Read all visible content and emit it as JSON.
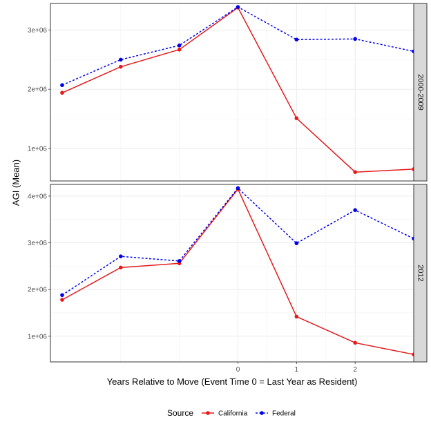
{
  "chart_data": {
    "type": "line",
    "xlabel": "Years Relative to Move (Event Time 0 = Last Year as Resident)",
    "ylabel": "AGI (Mean)",
    "x_ticks": [
      0,
      1,
      2
    ],
    "xlim": [
      -3.2,
      3.0
    ],
    "legend": {
      "title": "Source",
      "position": "bottom",
      "entries": [
        {
          "name": "California",
          "color": "#e41a1c",
          "linetype": "solid"
        },
        {
          "name": "Federal",
          "color": "#0000ee",
          "linetype": "dotted"
        }
      ]
    },
    "panels": [
      {
        "strip": "2000-2009",
        "ylim": [
          450000,
          3450000
        ],
        "y_ticks": [
          1000000,
          2000000,
          3000000
        ],
        "y_tick_labels": [
          "1e+06",
          "2e+06",
          "3e+06"
        ],
        "series": [
          {
            "name": "California",
            "x": [
              -3,
              -2,
              -1,
              0,
              1,
              2,
              3
            ],
            "values": [
              1940000,
              2380000,
              2670000,
              3380000,
              1510000,
              600000,
              650000
            ]
          },
          {
            "name": "Federal",
            "x": [
              -3,
              -2,
              -1,
              0,
              1,
              2,
              3
            ],
            "values": [
              2070000,
              2500000,
              2740000,
              3390000,
              2840000,
              2850000,
              2640000
            ]
          }
        ]
      },
      {
        "strip": "2012",
        "ylim": [
          450000,
          4250000
        ],
        "y_ticks": [
          1000000,
          2000000,
          3000000,
          4000000
        ],
        "y_tick_labels": [
          "1e+06",
          "2e+06",
          "3e+06",
          "4e+06"
        ],
        "series": [
          {
            "name": "California",
            "x": [
              -3,
              -2,
              -1,
              0,
              1,
              2,
              3
            ],
            "values": [
              1780000,
              2470000,
              2560000,
              4150000,
              1420000,
              860000,
              610000
            ]
          },
          {
            "name": "Federal",
            "x": [
              -3,
              -2,
              -1,
              0,
              1,
              2,
              3
            ],
            "values": [
              1880000,
              2710000,
              2610000,
              4170000,
              2990000,
              3700000,
              3090000
            ]
          }
        ]
      }
    ]
  }
}
